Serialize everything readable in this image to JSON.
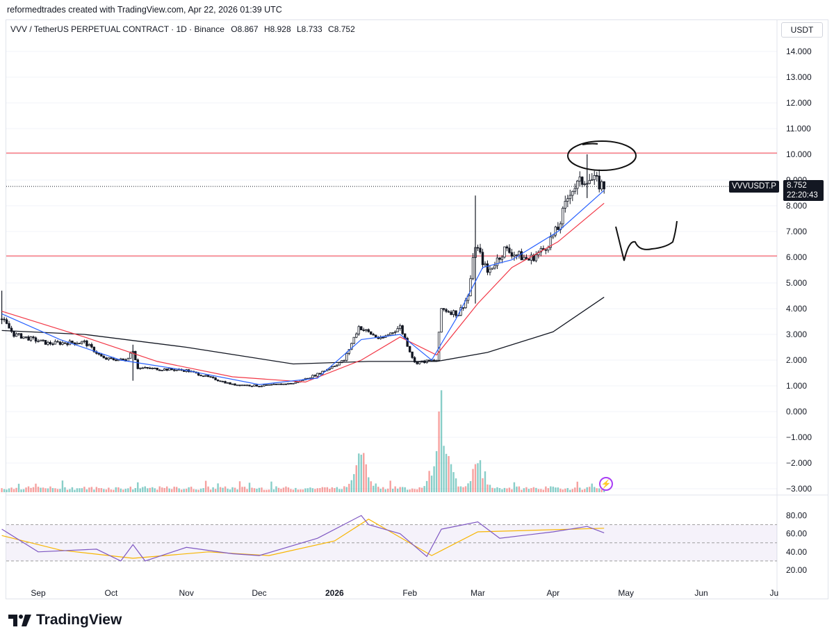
{
  "attribution": "reformedtrades created with TradingView.com, Apr 22, 2026 01:39 UTC",
  "symbol": {
    "title": "VVV / TetherUS PERPETUAL CONTRACT · 1D · Binance",
    "open_label": "O",
    "open": "8.867",
    "high_label": "H",
    "high": "8.928",
    "low_label": "L",
    "low": "8.733",
    "close_label": "C",
    "close": "8.752"
  },
  "currency": "USDT",
  "price_tag": {
    "ticker": "VVVUSDT.P",
    "price": "8.752",
    "countdown": "22:20:43"
  },
  "footer": {
    "brand": "TradingView"
  },
  "colors": {
    "up": "#26a69a",
    "down": "#ef5350",
    "candle": "#131722",
    "ema_fast": "#2962ff",
    "ema_slow": "#f23645",
    "ma_long": "#131722",
    "rsi": "#7e57c2",
    "rsi_ma": "#f7b500",
    "level": "#f23645"
  },
  "icons": {
    "lightning": "lightning-bolt-icon",
    "logo": "tradingview-logo-icon"
  },
  "chart_data": {
    "type": "candlestick",
    "timeframe": "1D",
    "y_axis": {
      "ticks": [
        "14.000",
        "13.000",
        "12.000",
        "11.000",
        "10.000",
        "9.000",
        "8.000",
        "7.000",
        "6.000",
        "5.000",
        "4.000",
        "3.000",
        "2.000",
        "1.000",
        "0.000",
        "−1.000",
        "−2.000",
        "−3.000"
      ],
      "range": [
        -3,
        14.5
      ]
    },
    "x_axis": {
      "ticks": [
        "Sep",
        "Oct",
        "Nov",
        "Dec",
        "2026",
        "Feb",
        "Mar",
        "Apr",
        "May",
        "Jun",
        "Ju"
      ]
    },
    "horizontal_levels": [
      10.05,
      6.05
    ],
    "last_price": 8.752,
    "close_path": [
      {
        "date": "2025-08-17",
        "close": 3.6
      },
      {
        "date": "2025-08-22",
        "close": 3.0
      },
      {
        "date": "2025-09-05",
        "close": 2.65
      },
      {
        "date": "2025-09-20",
        "close": 2.7
      },
      {
        "date": "2025-09-28",
        "close": 2.05
      },
      {
        "date": "2025-10-07",
        "close": 2.0
      },
      {
        "date": "2025-10-10",
        "close": 2.4
      },
      {
        "date": "2025-10-12",
        "close": 1.7
      },
      {
        "date": "2025-11-01",
        "close": 1.6
      },
      {
        "date": "2025-11-20",
        "close": 1.05
      },
      {
        "date": "2025-12-01",
        "close": 1.0
      },
      {
        "date": "2025-12-15",
        "close": 1.1
      },
      {
        "date": "2025-12-25",
        "close": 1.45
      },
      {
        "date": "2026-01-05",
        "close": 2.0
      },
      {
        "date": "2026-01-11",
        "close": 3.3
      },
      {
        "date": "2026-01-20",
        "close": 2.8
      },
      {
        "date": "2026-01-28",
        "close": 3.3
      },
      {
        "date": "2026-02-03",
        "close": 1.9
      },
      {
        "date": "2026-02-12",
        "close": 2.0
      },
      {
        "date": "2026-02-14",
        "close": 4.0
      },
      {
        "date": "2026-02-21",
        "close": 3.8
      },
      {
        "date": "2026-02-25",
        "close": 4.5
      },
      {
        "date": "2026-02-28",
        "close": 6.5
      },
      {
        "date": "2026-03-05",
        "close": 5.4
      },
      {
        "date": "2026-03-12",
        "close": 6.3
      },
      {
        "date": "2026-03-22",
        "close": 5.9
      },
      {
        "date": "2026-03-28",
        "close": 6.3
      },
      {
        "date": "2026-04-03",
        "close": 7.1
      },
      {
        "date": "2026-04-08",
        "close": 8.6
      },
      {
        "date": "2026-04-15",
        "close": 9.1
      },
      {
        "date": "2026-04-22",
        "close": 8.75
      }
    ],
    "wicks": [
      {
        "date": "2025-08-17",
        "high": 4.7,
        "low": 3.4
      },
      {
        "date": "2025-10-10",
        "high": 2.6,
        "low": 1.2
      },
      {
        "date": "2026-02-28",
        "high": 8.4,
        "low": 4.2
      },
      {
        "date": "2026-04-15",
        "high": 10.0,
        "low": 8.3
      }
    ],
    "ema_fast": [
      {
        "date": "2025-08-17",
        "value": 3.8
      },
      {
        "date": "2025-09-10",
        "value": 2.8
      },
      {
        "date": "2025-10-05",
        "value": 2.0
      },
      {
        "date": "2025-11-01",
        "value": 1.6
      },
      {
        "date": "2025-12-01",
        "value": 1.05
      },
      {
        "date": "2025-12-25",
        "value": 1.3
      },
      {
        "date": "2026-01-12",
        "value": 2.8
      },
      {
        "date": "2026-01-28",
        "value": 3.0
      },
      {
        "date": "2026-02-10",
        "value": 2.0
      },
      {
        "date": "2026-02-20",
        "value": 3.6
      },
      {
        "date": "2026-03-03",
        "value": 5.6
      },
      {
        "date": "2026-03-15",
        "value": 5.9
      },
      {
        "date": "2026-04-03",
        "value": 7.0
      },
      {
        "date": "2026-04-22",
        "value": 8.6
      }
    ],
    "ema_slow": [
      {
        "date": "2025-08-17",
        "value": 3.9
      },
      {
        "date": "2025-09-20",
        "value": 2.9
      },
      {
        "date": "2025-10-20",
        "value": 1.95
      },
      {
        "date": "2025-11-20",
        "value": 1.35
      },
      {
        "date": "2025-12-20",
        "value": 1.15
      },
      {
        "date": "2026-01-12",
        "value": 2.0
      },
      {
        "date": "2026-01-28",
        "value": 2.9
      },
      {
        "date": "2026-02-12",
        "value": 2.2
      },
      {
        "date": "2026-03-01",
        "value": 4.2
      },
      {
        "date": "2026-03-15",
        "value": 5.6
      },
      {
        "date": "2026-04-03",
        "value": 6.6
      },
      {
        "date": "2026-04-22",
        "value": 8.1
      }
    ],
    "ma_long": [
      {
        "date": "2025-08-17",
        "value": 3.15
      },
      {
        "date": "2025-09-20",
        "value": 3.0
      },
      {
        "date": "2025-11-01",
        "value": 2.5
      },
      {
        "date": "2025-12-15",
        "value": 1.85
      },
      {
        "date": "2026-01-15",
        "value": 1.95
      },
      {
        "date": "2026-02-12",
        "value": 1.95
      },
      {
        "date": "2026-03-05",
        "value": 2.3
      },
      {
        "date": "2026-04-01",
        "value": 3.1
      },
      {
        "date": "2026-04-22",
        "value": 4.45
      }
    ],
    "volume": {
      "spikes": [
        {
          "date": "2026-01-12",
          "relative": 0.56
        },
        {
          "date": "2026-02-14",
          "relative": 1.0
        },
        {
          "date": "2026-03-01",
          "relative": 0.42
        }
      ]
    },
    "rsi": {
      "y_ticks": [
        "80.00",
        "60.00",
        "40.00",
        "20.00"
      ],
      "range": [
        20,
        90
      ],
      "bands": [
        70,
        50,
        30
      ],
      "values": [
        {
          "date": "2025-08-17",
          "value": 65
        },
        {
          "date": "2025-09-01",
          "value": 40
        },
        {
          "date": "2025-09-25",
          "value": 43
        },
        {
          "date": "2025-10-05",
          "value": 30
        },
        {
          "date": "2025-10-10",
          "value": 48
        },
        {
          "date": "2025-10-15",
          "value": 30
        },
        {
          "date": "2025-11-01",
          "value": 45
        },
        {
          "date": "2025-11-20",
          "value": 38
        },
        {
          "date": "2025-12-01",
          "value": 36
        },
        {
          "date": "2025-12-25",
          "value": 55
        },
        {
          "date": "2026-01-12",
          "value": 80
        },
        {
          "date": "2026-01-15",
          "value": 70
        },
        {
          "date": "2026-01-28",
          "value": 60
        },
        {
          "date": "2026-02-08",
          "value": 35
        },
        {
          "date": "2026-02-14",
          "value": 65
        },
        {
          "date": "2026-03-01",
          "value": 73
        },
        {
          "date": "2026-03-10",
          "value": 55
        },
        {
          "date": "2026-04-01",
          "value": 62
        },
        {
          "date": "2026-04-15",
          "value": 68
        },
        {
          "date": "2026-04-22",
          "value": 61
        }
      ],
      "ma": [
        {
          "date": "2025-08-17",
          "value": 58
        },
        {
          "date": "2025-09-10",
          "value": 42
        },
        {
          "date": "2025-10-10",
          "value": 33
        },
        {
          "date": "2025-11-10",
          "value": 40
        },
        {
          "date": "2025-12-05",
          "value": 36
        },
        {
          "date": "2026-01-01",
          "value": 52
        },
        {
          "date": "2026-01-15",
          "value": 76
        },
        {
          "date": "2026-02-10",
          "value": 36
        },
        {
          "date": "2026-03-01",
          "value": 62
        },
        {
          "date": "2026-04-22",
          "value": 66
        }
      ]
    }
  }
}
